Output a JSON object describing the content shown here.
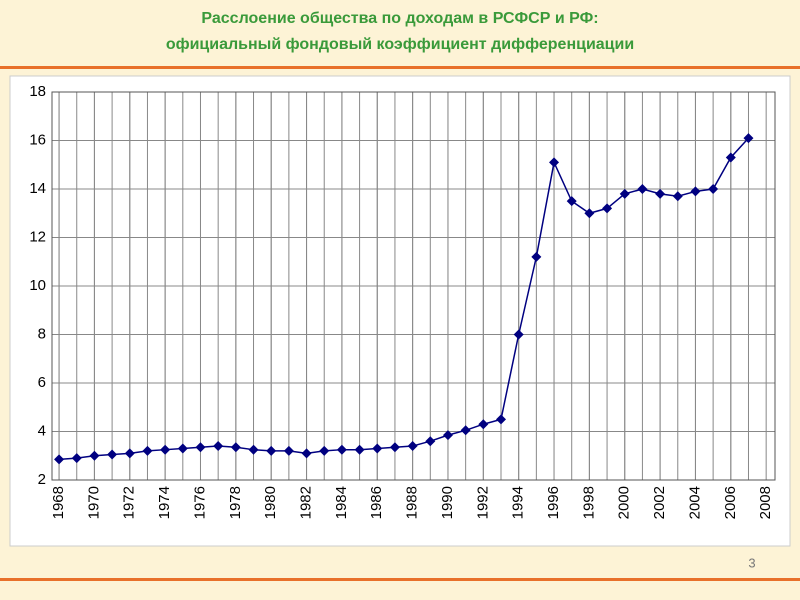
{
  "chart_data": {
    "type": "line",
    "title": "Расслоение общества по доходам в РСФСР и РФ:",
    "subtitle": "официальный фондовый коэффициент дифференциации",
    "page_number": "3",
    "x": [
      1968,
      1969,
      1970,
      1971,
      1972,
      1973,
      1974,
      1975,
      1976,
      1977,
      1978,
      1979,
      1980,
      1981,
      1982,
      1983,
      1984,
      1985,
      1986,
      1987,
      1988,
      1989,
      1990,
      1991,
      1992,
      1993,
      1994,
      1995,
      1996,
      1997,
      1998,
      1999,
      2000,
      2001,
      2002,
      2003,
      2004,
      2005,
      2006,
      2007
    ],
    "series": [
      {
        "color": "#000080",
        "values": [
          2.85,
          2.9,
          3.0,
          3.05,
          3.1,
          3.2,
          3.25,
          3.3,
          3.35,
          3.4,
          3.35,
          3.25,
          3.2,
          3.2,
          3.1,
          3.2,
          3.25,
          3.25,
          3.3,
          3.35,
          3.4,
          3.6,
          3.85,
          4.05,
          4.3,
          4.5,
          8.0,
          11.2,
          15.1,
          13.5,
          13.0,
          13.2,
          13.8,
          14.0,
          13.8,
          13.7,
          13.9,
          14.0,
          15.3,
          16.1
        ]
      }
    ],
    "xlim": [
      1967.6,
      2008.5
    ],
    "xticks": [
      1968,
      1970,
      1972,
      1974,
      1976,
      1978,
      1980,
      1982,
      1984,
      1986,
      1988,
      1990,
      1992,
      1994,
      1996,
      1998,
      2000,
      2002,
      2004,
      2006,
      2008
    ],
    "ylim": [
      2,
      18
    ],
    "yticks": [
      2,
      4,
      6,
      8,
      10,
      12,
      14,
      16,
      18
    ],
    "grid": true
  }
}
